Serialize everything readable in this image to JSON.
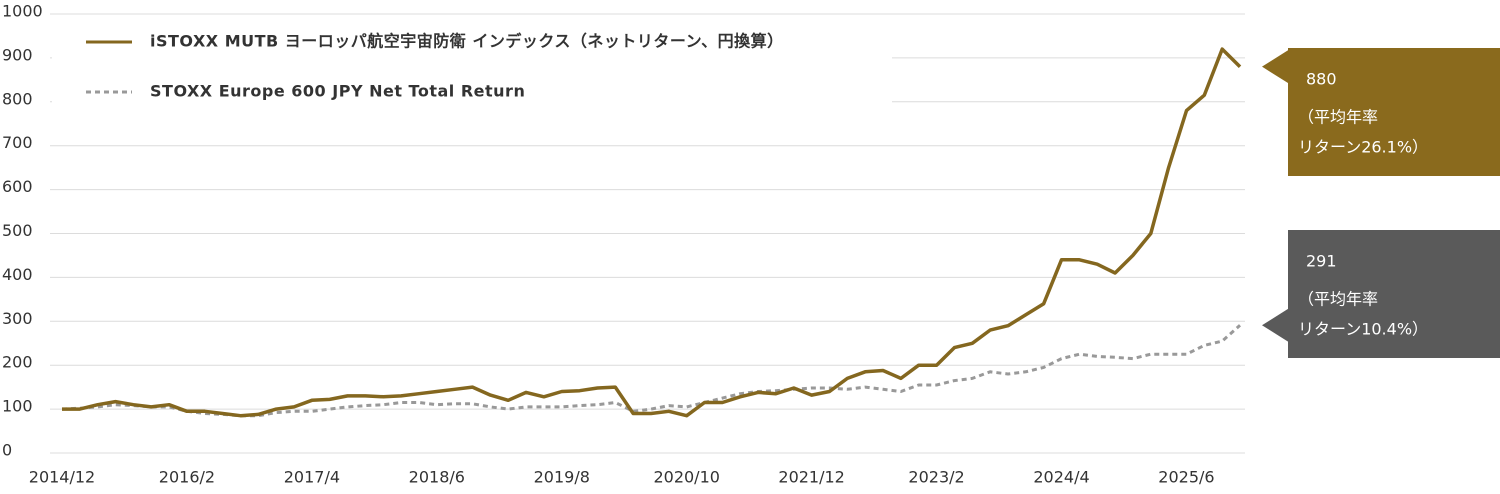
{
  "chart_data": {
    "type": "line",
    "categories": [
      "2014/12",
      null,
      null,
      null,
      null,
      null,
      null,
      "2016/2",
      null,
      null,
      null,
      null,
      null,
      null,
      "2017/4",
      null,
      null,
      null,
      null,
      null,
      null,
      "2018/6",
      null,
      null,
      null,
      null,
      null,
      null,
      "2019/8",
      null,
      null,
      null,
      null,
      null,
      null,
      "2020/10",
      null,
      null,
      null,
      null,
      null,
      null,
      "2021/12",
      null,
      null,
      null,
      null,
      null,
      null,
      "2023/2",
      null,
      null,
      null,
      null,
      null,
      null,
      "2024/4",
      null,
      null,
      null,
      null,
      null,
      null,
      "2025/6",
      null,
      null,
      null
    ],
    "series": [
      {
        "name": "iSTOXX MUTB ヨーロッパ航空宇宙防衛 インデックス（ネットリターン、円換算）",
        "color": "#84671f",
        "dashed": false,
        "annotation_lines": [
          "（平均年率",
          "リターン26.1%）"
        ],
        "values": [
          100,
          100,
          110,
          117,
          110,
          105,
          110,
          95,
          95,
          90,
          85,
          88,
          100,
          105,
          120,
          122,
          130,
          130,
          128,
          130,
          135,
          140,
          145,
          150,
          132,
          120,
          138,
          128,
          140,
          142,
          148,
          150,
          90,
          90,
          95,
          85,
          115,
          115,
          128,
          138,
          135,
          148,
          132,
          140,
          170,
          185,
          188,
          170,
          200,
          200,
          240,
          250,
          280,
          290,
          315,
          340,
          440,
          440,
          430,
          410,
          450,
          500,
          650,
          780,
          815,
          920,
          880
        ]
      },
      {
        "name": "STOXX Europe 600 JPY Net Total Return",
        "color": "#999999",
        "dashed": true,
        "annotation_lines": [
          "（平均年率",
          "リターン10.4%）"
        ],
        "values": [
          100,
          102,
          105,
          110,
          108,
          105,
          105,
          95,
          90,
          88,
          85,
          85,
          92,
          95,
          95,
          100,
          105,
          108,
          110,
          115,
          115,
          110,
          112,
          112,
          105,
          100,
          105,
          105,
          105,
          108,
          110,
          115,
          95,
          100,
          108,
          105,
          115,
          125,
          135,
          140,
          142,
          145,
          148,
          148,
          145,
          150,
          145,
          140,
          155,
          155,
          165,
          170,
          185,
          180,
          185,
          195,
          215,
          225,
          220,
          218,
          215,
          225,
          225,
          225,
          245,
          255,
          291
        ]
      }
    ],
    "ylim": [
      0,
      1000
    ],
    "yticks": [
      0,
      100,
      200,
      300,
      400,
      500,
      600,
      700,
      800,
      900,
      1000
    ],
    "grid": true,
    "callout_colors": [
      "#8a6a1d",
      "#5a5a5a"
    ]
  }
}
